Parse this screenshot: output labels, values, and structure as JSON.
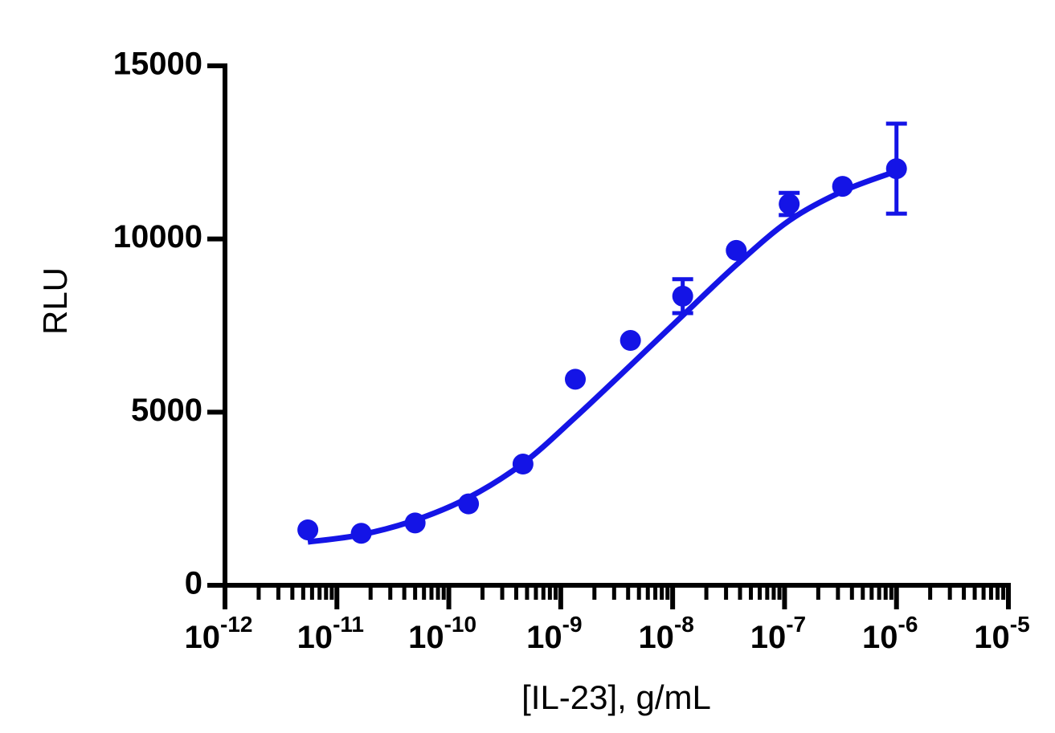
{
  "chart_data": {
    "type": "scatter",
    "x_label": "[IL-23], g/mL",
    "y_label": "RLU",
    "xscale": "log",
    "xlim": [
      1e-12,
      1e-05
    ],
    "xticks": [
      {
        "value": 1e-12,
        "label": "10",
        "exponent": "-12"
      },
      {
        "value": 1e-11,
        "label": "10",
        "exponent": "-11"
      },
      {
        "value": 1e-10,
        "label": "10",
        "exponent": "-10"
      },
      {
        "value": 1e-09,
        "label": "10",
        "exponent": "-9"
      },
      {
        "value": 1e-08,
        "label": "10",
        "exponent": "-8"
      },
      {
        "value": 1e-07,
        "label": "10",
        "exponent": "-7"
      },
      {
        "value": 1e-06,
        "label": "10",
        "exponent": "-6"
      },
      {
        "value": 1e-05,
        "label": "10",
        "exponent": "-5"
      }
    ],
    "ylim": [
      0,
      15000
    ],
    "yticks": [
      0,
      5000,
      10000,
      15000
    ],
    "color": "#1414e6",
    "x": [
      5.5e-12,
      1.65e-11,
      5e-11,
      1.5e-10,
      4.6e-10,
      1.35e-09,
      4.2e-09,
      1.23e-08,
      3.7e-08,
      1.1e-07,
      3.3e-07,
      1e-06
    ],
    "values": [
      1600,
      1500,
      1800,
      2350,
      3500,
      5950,
      7070,
      8350,
      9670,
      11010,
      11520,
      12030
    ],
    "errors": [
      null,
      null,
      null,
      null,
      null,
      null,
      null,
      490,
      null,
      320,
      null,
      1300
    ],
    "fit": {
      "x": [
        5.5e-12,
        1.65e-11,
        5e-11,
        1.5e-10,
        4.6e-10,
        1.35e-09,
        4.2e-09,
        1.23e-08,
        3.7e-08,
        1.1e-07,
        3.3e-07,
        1e-06
      ],
      "values": [
        1250,
        1460,
        1880,
        2530,
        3520,
        4850,
        6350,
        7790,
        9250,
        10530,
        11380,
        11960
      ]
    }
  }
}
